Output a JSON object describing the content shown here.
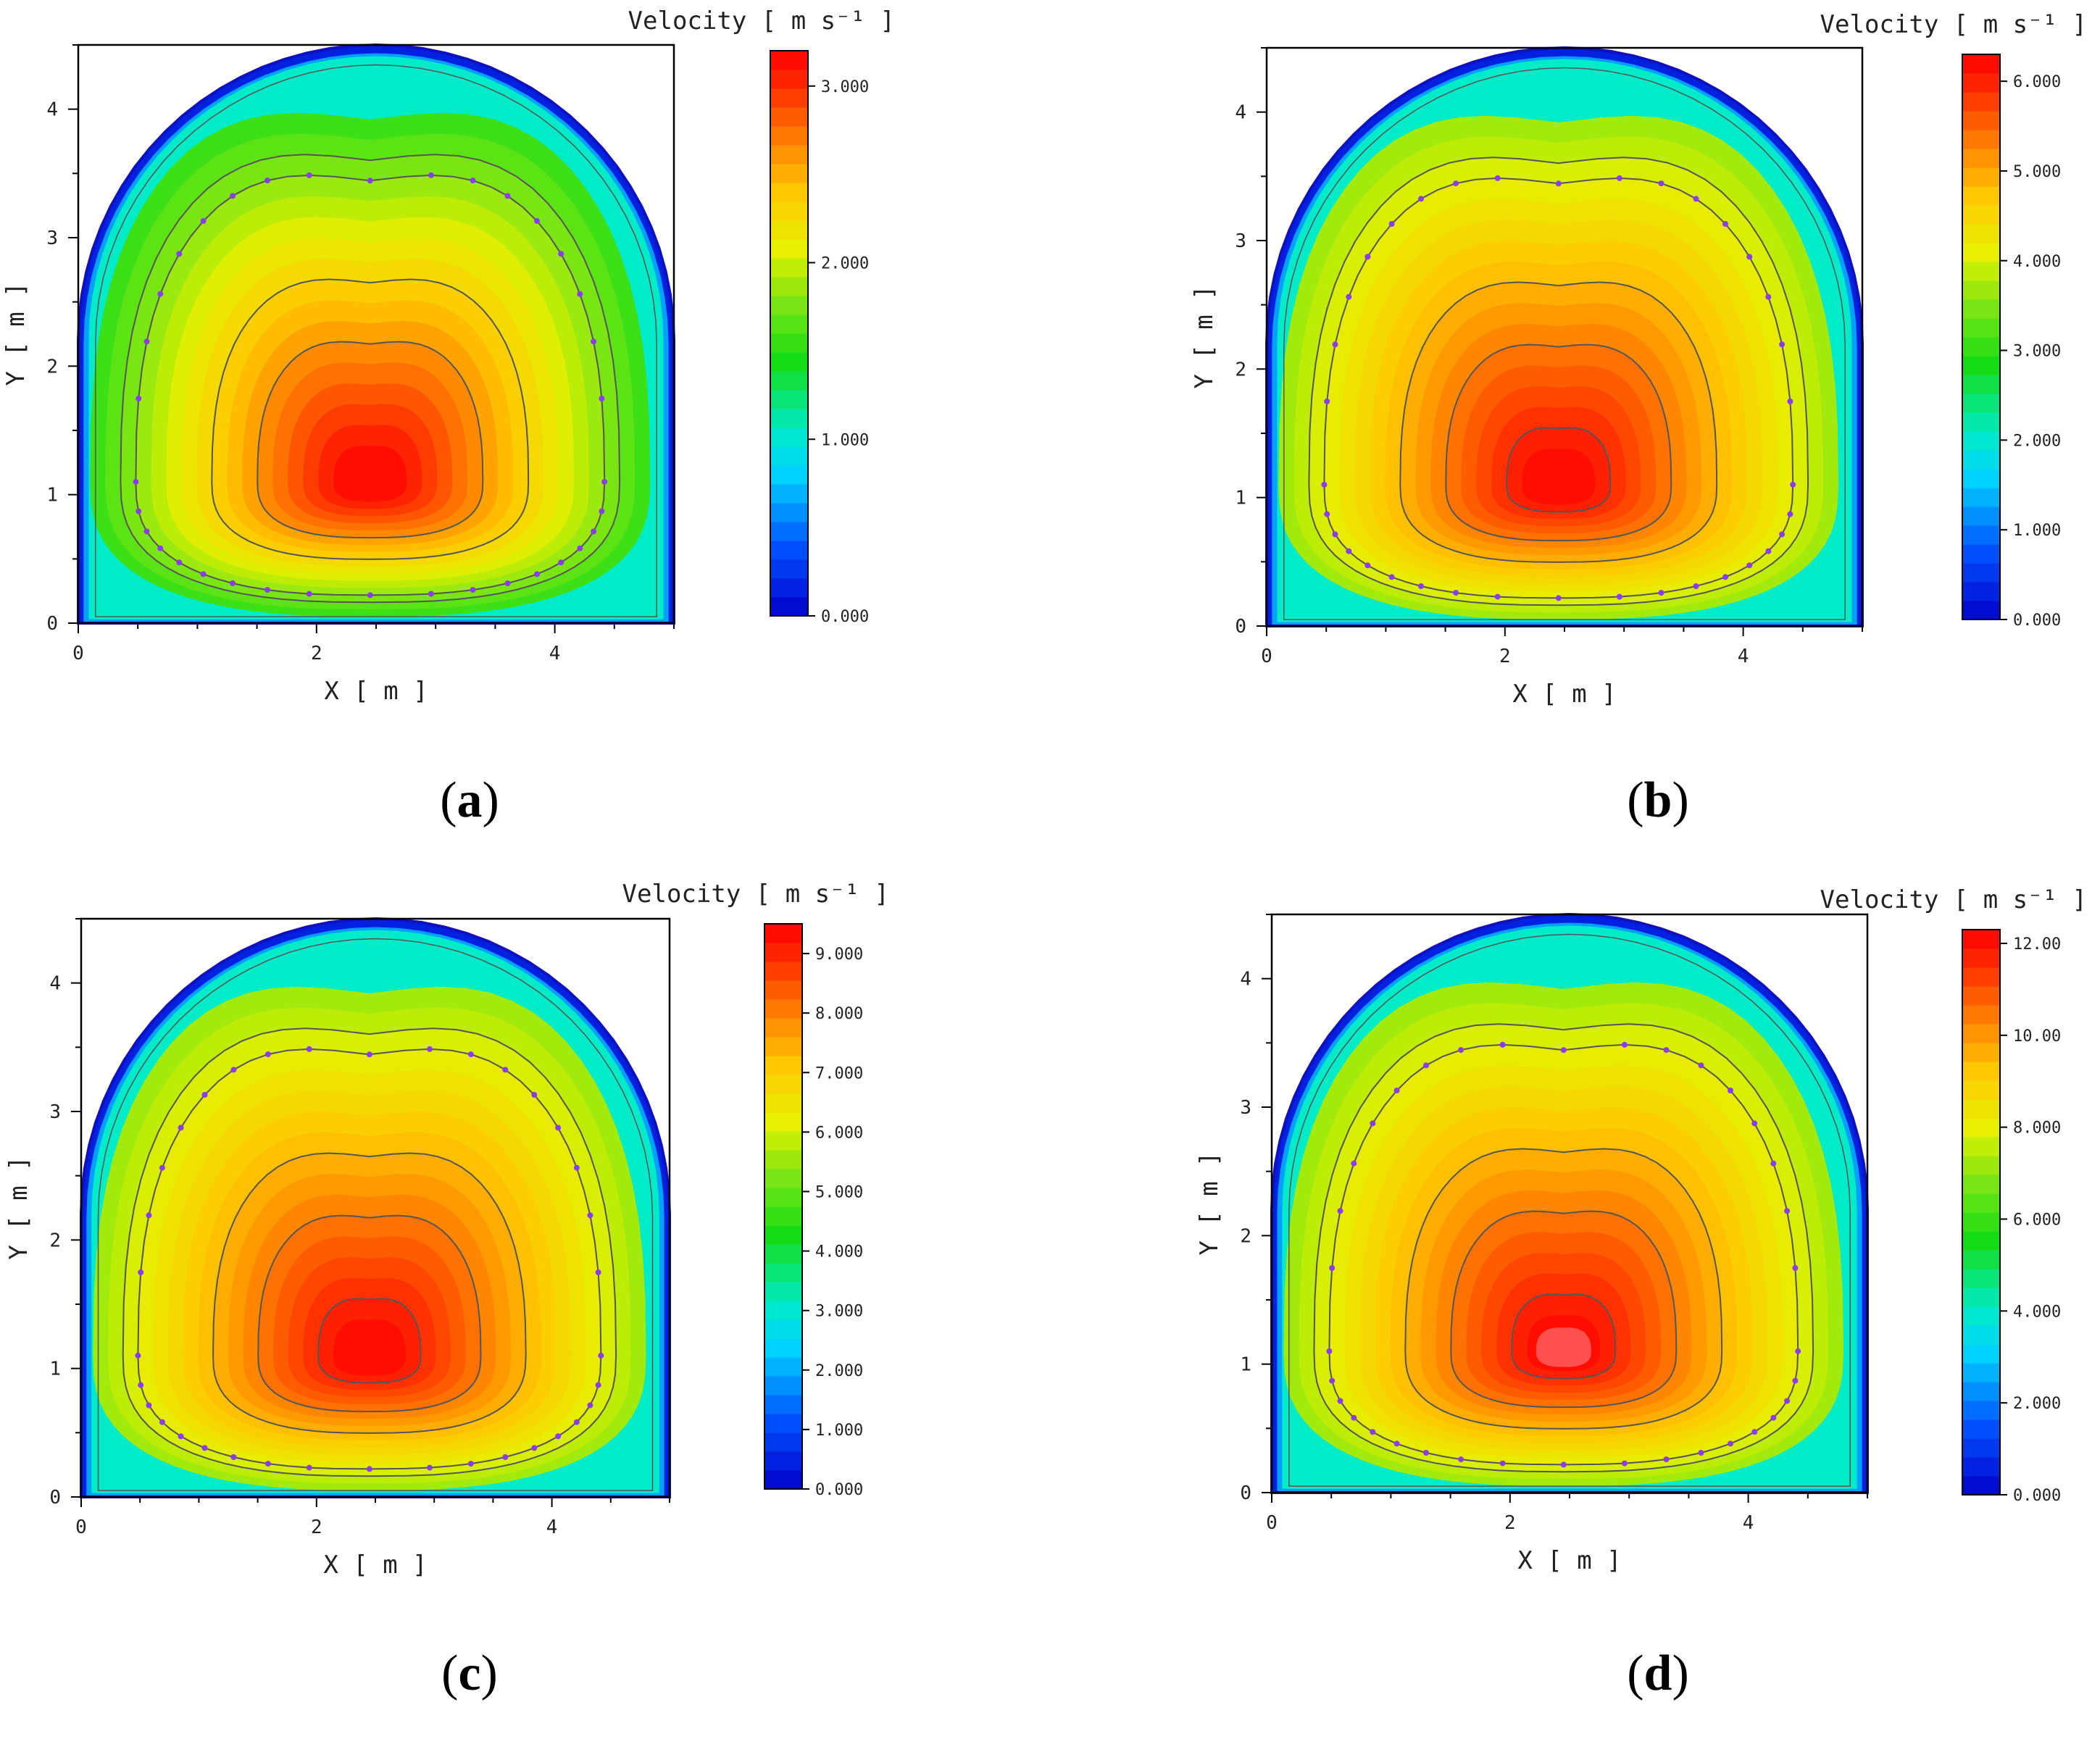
{
  "figure": {
    "captions": [
      "(a)",
      "(b)",
      "(c)",
      "(d)"
    ]
  },
  "chart_data": [
    {
      "type": "heatmap",
      "panel": "a",
      "xlabel": "X [ m ]",
      "ylabel": "Y [ m ]",
      "colorbar_title": "Velocity [ m s⁻¹ ]",
      "xlim": [
        0,
        5
      ],
      "ylim": [
        0,
        4.5
      ],
      "xticks": [
        0,
        2,
        4
      ],
      "yticks": [
        0,
        1,
        2,
        3,
        4
      ],
      "colorbar_ticks": [
        "0.000",
        "1.000",
        "2.000",
        "3.000"
      ],
      "colorbar_range": [
        0,
        3.2
      ],
      "peak_velocity": 3.2,
      "peak_center": [
        2.45,
        1.1
      ],
      "rim_velocity_fraction": 0.5,
      "inner_contours": 2,
      "grid": false
    },
    {
      "type": "heatmap",
      "panel": "b",
      "xlabel": "X [ m ]",
      "ylabel": "Y [ m ]",
      "colorbar_title": "Velocity [ m s⁻¹ ]",
      "xlim": [
        0,
        5
      ],
      "ylim": [
        0,
        4.5
      ],
      "xticks": [
        0,
        2,
        4
      ],
      "yticks": [
        0,
        1,
        2,
        3,
        4
      ],
      "colorbar_ticks": [
        "0.000",
        "1.000",
        "2.000",
        "3.000",
        "4.000",
        "5.000",
        "6.000"
      ],
      "colorbar_range": [
        0,
        6.3
      ],
      "peak_velocity": 6.3,
      "peak_center": [
        2.45,
        1.1
      ],
      "rim_velocity_fraction": 0.6,
      "inner_contours": 3,
      "grid": false
    },
    {
      "type": "heatmap",
      "panel": "c",
      "xlabel": "X [ m ]",
      "ylabel": "Y [ m ]",
      "colorbar_title": "Velocity [ m s⁻¹ ]",
      "xlim": [
        0,
        5
      ],
      "ylim": [
        0,
        4.5
      ],
      "xticks": [
        0,
        2,
        4
      ],
      "yticks": [
        0,
        1,
        2,
        3,
        4
      ],
      "colorbar_ticks": [
        "0.000",
        "1.000",
        "2.000",
        "3.000",
        "4.000",
        "5.000",
        "6.000",
        "7.000",
        "8.000",
        "9.000"
      ],
      "colorbar_range": [
        0,
        9.5
      ],
      "peak_velocity": 9.5,
      "peak_center": [
        2.45,
        1.1
      ],
      "rim_velocity_fraction": 0.6,
      "inner_contours": 3,
      "grid": false
    },
    {
      "type": "heatmap",
      "panel": "d",
      "xlabel": "X [ m ]",
      "ylabel": "Y [ m ]",
      "colorbar_title": "Velocity [ m s⁻¹ ]",
      "xlim": [
        0,
        5
      ],
      "ylim": [
        0,
        4.5
      ],
      "xticks": [
        0,
        2,
        4
      ],
      "yticks": [
        0,
        1,
        2,
        3,
        4
      ],
      "colorbar_ticks": [
        "0.000",
        "2.000",
        "4.000",
        "6.000",
        "8.000",
        "10.00",
        "12.00"
      ],
      "colorbar_range": [
        0,
        12.3
      ],
      "peak_velocity": 12.3,
      "peak_center": [
        2.45,
        1.1
      ],
      "rim_velocity_fraction": 0.6,
      "inner_contours": 3,
      "grid": false
    }
  ]
}
